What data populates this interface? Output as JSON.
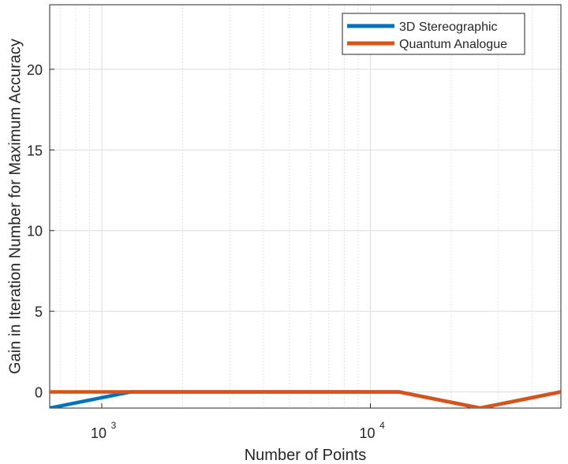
{
  "chart_data": {
    "type": "line",
    "xlabel": "Number of Points",
    "ylabel": "Gain in Iteration Number for Maximum Accuracy",
    "xscale": "log",
    "xlim": [
      640,
      51200
    ],
    "ylim": [
      -1,
      24
    ],
    "xticks": [
      {
        "value": 1000,
        "label": "10",
        "exp": "3"
      },
      {
        "value": 10000,
        "label": "10",
        "exp": "4"
      }
    ],
    "yticks": [
      0,
      5,
      10,
      15,
      20
    ],
    "grid": true,
    "minor_grid": true,
    "legend": {
      "position": "top-right"
    },
    "series": [
      {
        "name": "3D Stereographic",
        "color": "#0072BD",
        "x": [
          640,
          1280,
          2560,
          5120,
          12800,
          25600,
          51200
        ],
        "y": [
          -1,
          0,
          0,
          0,
          0,
          -1,
          0
        ]
      },
      {
        "name": "Quantum Analogue",
        "color": "#D95319",
        "x": [
          640,
          1280,
          2560,
          5120,
          12800,
          25600,
          51200
        ],
        "y": [
          0,
          0,
          0,
          0,
          0,
          -1,
          0
        ]
      }
    ]
  }
}
